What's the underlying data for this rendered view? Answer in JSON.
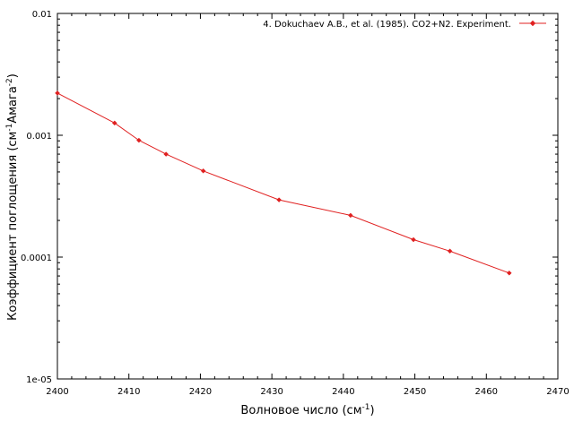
{
  "chart_data": {
    "type": "line",
    "xlabel": "Волновое число (см",
    "xlabel_sup": "-1",
    "xlabel_end": ")",
    "ylabel": "Коэффициент поглощения (см",
    "ylabel_sup1": "-1",
    "ylabel_mid": "Амага",
    "ylabel_sup2": "-2",
    "ylabel_end": ")",
    "xlim": [
      2400,
      2470
    ],
    "ylim": [
      1e-05,
      0.01
    ],
    "y_scale": "log",
    "x_ticks": [
      2400,
      2410,
      2420,
      2430,
      2440,
      2450,
      2460,
      2470
    ],
    "x_tick_labels": [
      "2400",
      "2410",
      "2420",
      "2430",
      "2440",
      "2450",
      "2460",
      "2470"
    ],
    "y_ticks": [
      1e-05,
      0.0001,
      0.001,
      0.01
    ],
    "y_tick_labels": [
      "1e-05",
      "0.0001",
      "0.001",
      "0.01"
    ],
    "grid": false,
    "legend_position": "top-right",
    "series": [
      {
        "name": "4. Dokuchaev A.B., et al. (1985). CO2+N2. Experiment.",
        "color": "#e02020",
        "marker": "diamond",
        "x": [
          2400.0,
          2408.0,
          2411.4,
          2415.2,
          2420.4,
          2431.0,
          2441.0,
          2449.8,
          2454.9,
          2463.2
        ],
        "y": [
          0.00222,
          0.00126,
          0.00091,
          0.0007,
          0.00051,
          0.000295,
          0.00022,
          0.000139,
          0.000112,
          7.4e-05
        ]
      }
    ]
  }
}
